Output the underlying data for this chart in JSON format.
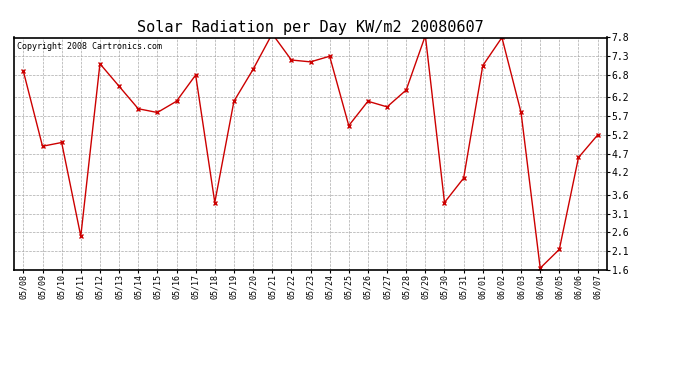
{
  "title": "Solar Radiation per Day KW/m2 20080607",
  "copyright": "Copyright 2008 Cartronics.com",
  "dates": [
    "05/08",
    "05/09",
    "05/10",
    "05/11",
    "05/12",
    "05/13",
    "05/14",
    "05/15",
    "05/16",
    "05/17",
    "05/18",
    "05/19",
    "05/20",
    "05/21",
    "05/22",
    "05/23",
    "05/24",
    "05/25",
    "05/26",
    "05/27",
    "05/28",
    "05/29",
    "05/30",
    "05/31",
    "06/01",
    "06/02",
    "06/03",
    "06/04",
    "06/05",
    "06/06",
    "06/07"
  ],
  "values": [
    6.9,
    4.9,
    5.0,
    2.5,
    7.1,
    6.5,
    5.9,
    5.8,
    6.1,
    6.8,
    3.4,
    6.1,
    6.95,
    7.9,
    7.2,
    7.15,
    7.3,
    5.45,
    6.1,
    5.95,
    6.4,
    7.85,
    3.4,
    4.05,
    7.05,
    7.8,
    5.8,
    1.65,
    2.15,
    4.6,
    5.2
  ],
  "line_color": "#cc0000",
  "marker": "x",
  "marker_color": "#cc0000",
  "marker_size": 3,
  "marker_linewidth": 1.0,
  "background_color": "#ffffff",
  "plot_bg_color": "#ffffff",
  "grid_color": "#aaaaaa",
  "ylim": [
    1.6,
    7.8
  ],
  "yticks": [
    1.6,
    2.1,
    2.6,
    3.1,
    3.6,
    4.2,
    4.7,
    5.2,
    5.7,
    6.2,
    6.8,
    7.3,
    7.8
  ],
  "title_fontsize": 11,
  "copyright_fontsize": 6,
  "xtick_fontsize": 6,
  "ytick_fontsize": 7
}
